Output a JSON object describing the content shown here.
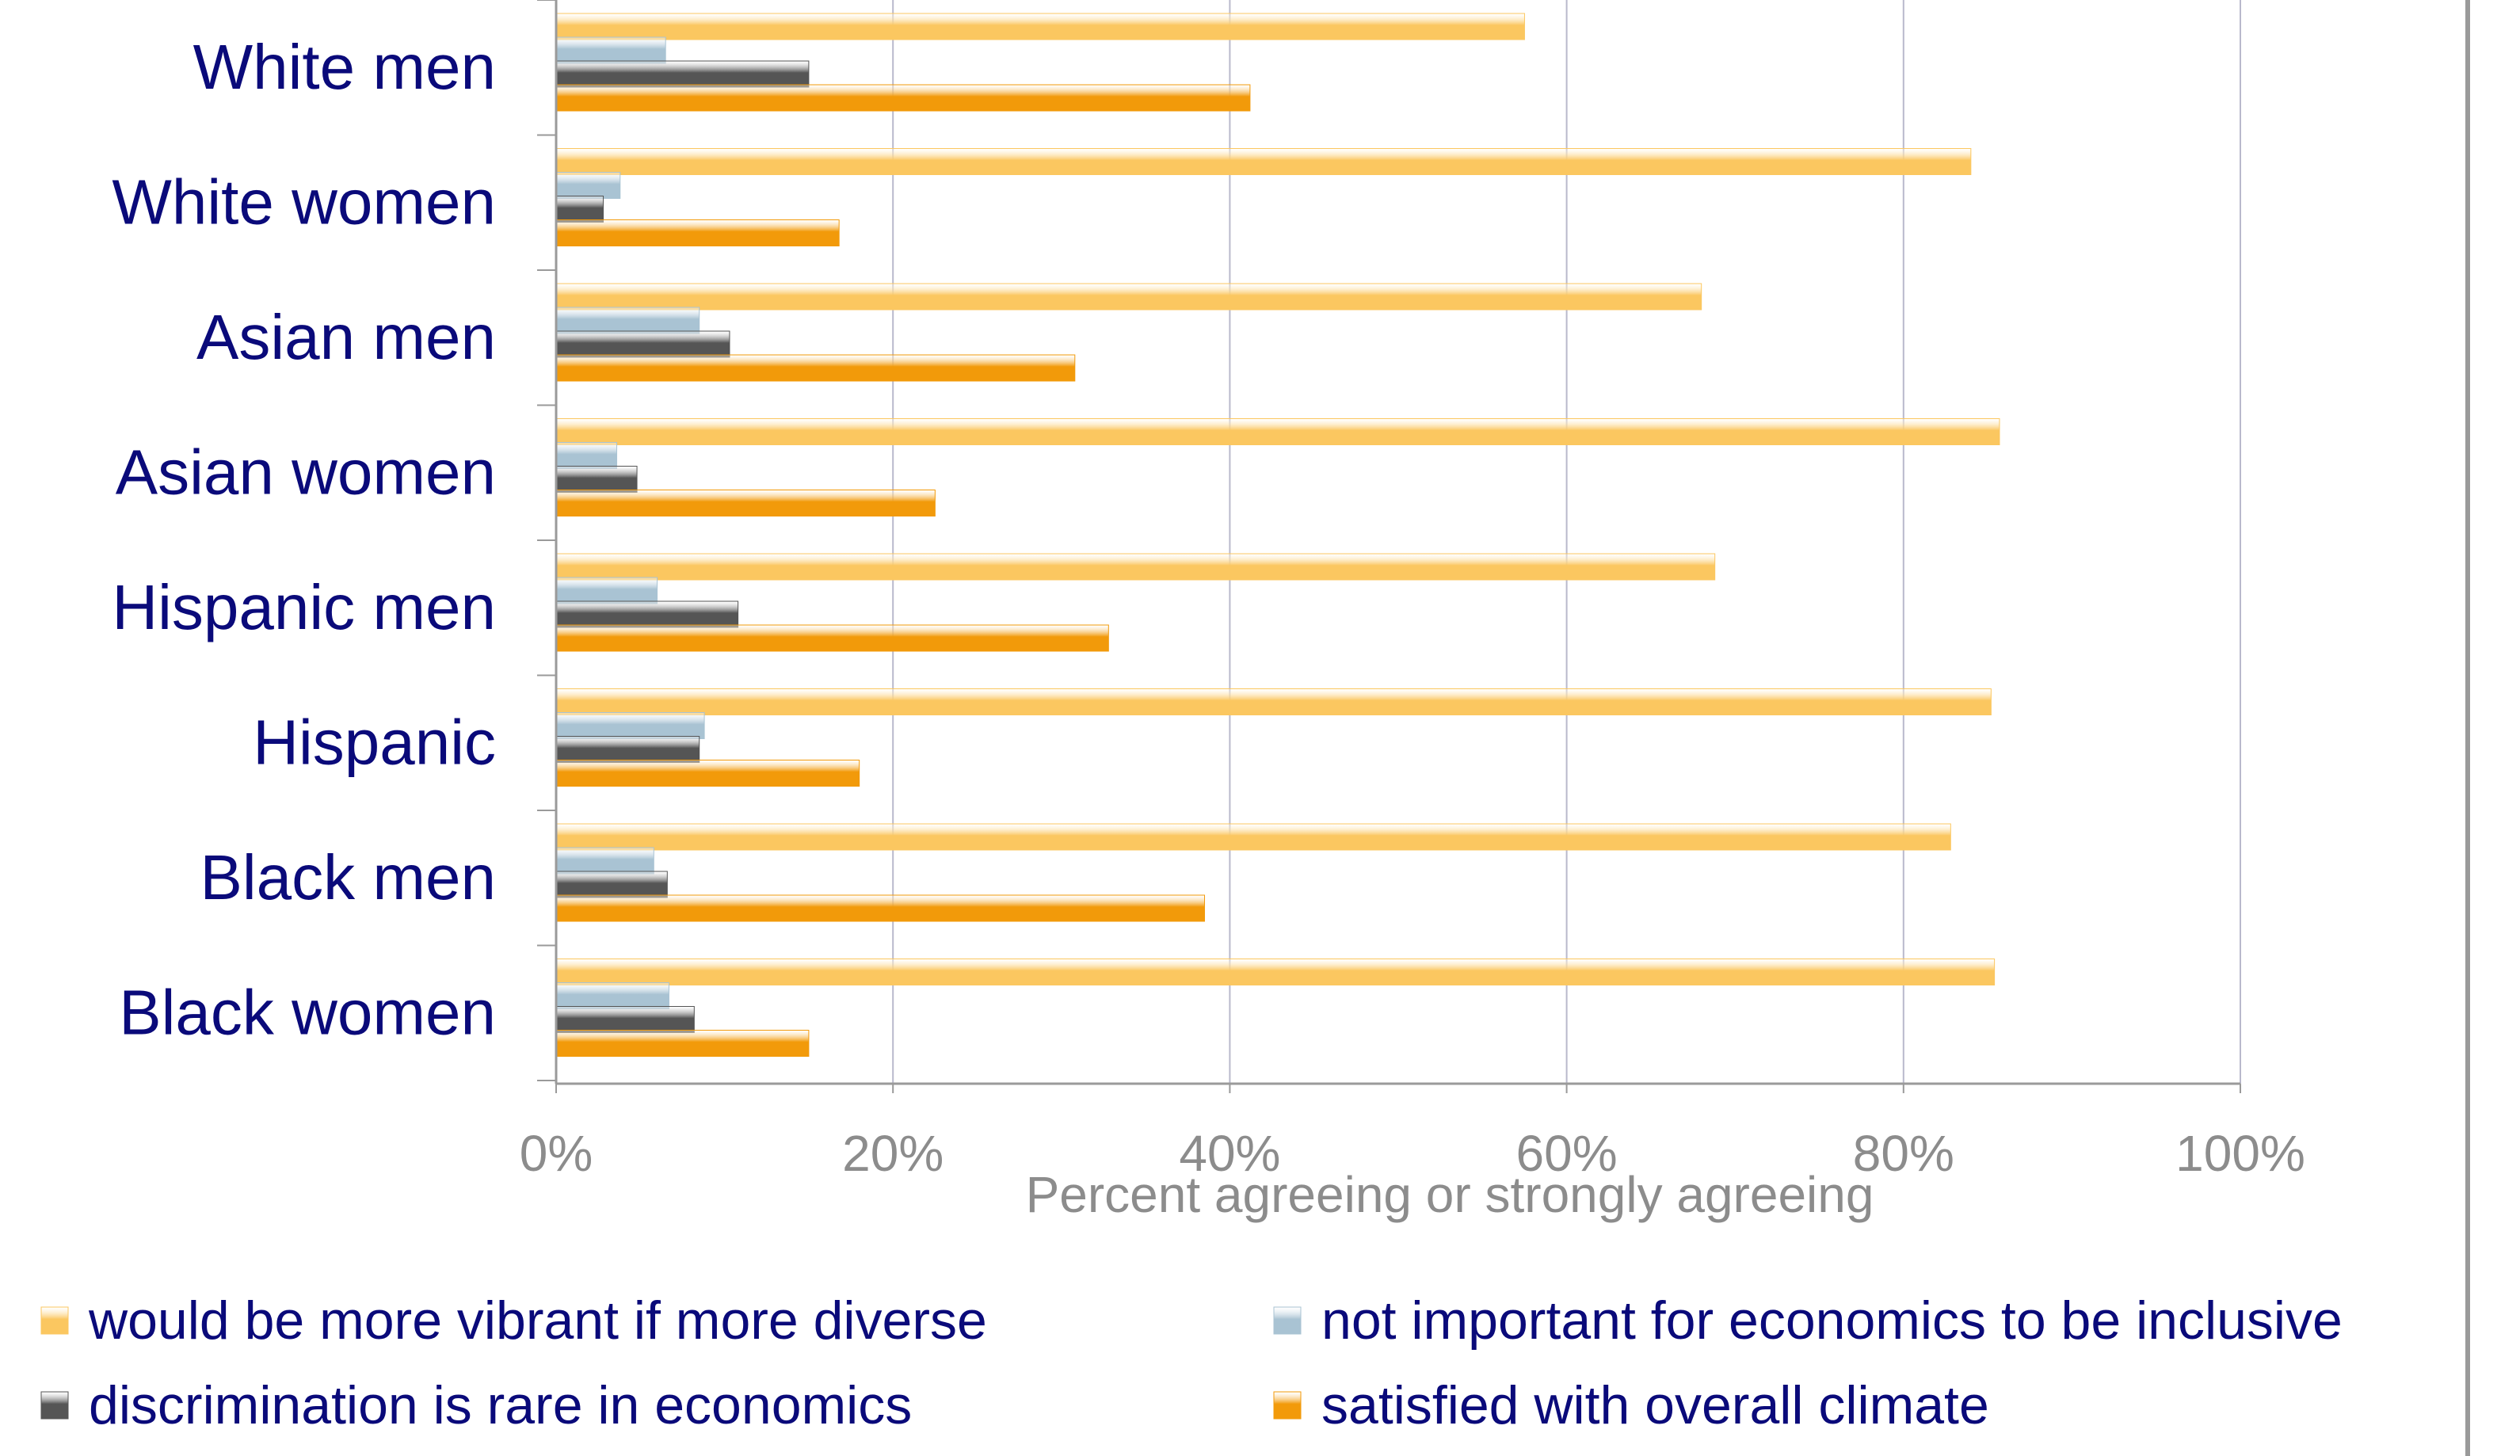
{
  "chart_data": {
    "type": "bar",
    "orientation": "horizontal",
    "categories": [
      "White men",
      "White women",
      "Asian men",
      "Asian women",
      "Hispanic men",
      "Hispanic",
      "Black men",
      "Black women"
    ],
    "series": [
      {
        "name": "would be more vibrant if more diverse",
        "color": "#fbc760",
        "values": [
          57.5,
          84,
          68,
          85.7,
          68.8,
          85.2,
          82.8,
          85.4
        ]
      },
      {
        "name": "not important for economics to be inclusive",
        "color": "#a9c3d3",
        "values": [
          6.5,
          3.8,
          8.5,
          3.6,
          6,
          8.8,
          5.8,
          6.7
        ]
      },
      {
        "name": "discrimination is rare in economics",
        "color": "#555555",
        "values": [
          15,
          2.8,
          10.3,
          4.8,
          10.8,
          8.5,
          6.6,
          8.2
        ]
      },
      {
        "name": "satisfied with overall climate",
        "color": "#f29a0a",
        "values": [
          41.2,
          16.8,
          30.8,
          22.5,
          32.8,
          18,
          38.5,
          15
        ]
      }
    ],
    "xlabel": "Percent agreeing or strongly agreeing",
    "ylabel": "",
    "xlim": [
      0,
      100
    ],
    "xticks": [
      "0%",
      "20%",
      "40%",
      "60%",
      "80%",
      "100%"
    ],
    "grid": true,
    "legend": "bottom"
  }
}
